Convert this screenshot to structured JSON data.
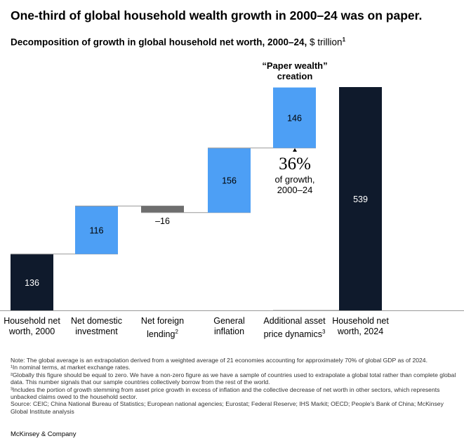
{
  "title": "One-third of global household wealth growth in 2000–24 was on paper.",
  "subtitle": "Decomposition of growth in global household net worth, 2000–24,",
  "subtitle_unit": " $ trillion",
  "subtitle_sup": "1",
  "annotation_top": "“Paper wealth” creation",
  "annotation_pct": "36%",
  "annotation_text": "of growth, 2000–24",
  "chart_data": {
    "type": "waterfall",
    "categories": [
      "Household net worth, 2000",
      "Net domestic investment",
      "Net foreign lending",
      "General inflation",
      "Additional asset price dynamics",
      "Household net worth, 2024"
    ],
    "category_sups": [
      "",
      "",
      "2",
      "",
      "3",
      ""
    ],
    "values": [
      136,
      116,
      -16,
      156,
      146,
      539
    ],
    "labels": [
      "136",
      "116",
      "–16",
      "156",
      "146",
      "539"
    ],
    "kinds": [
      "total",
      "delta",
      "delta",
      "delta",
      "delta",
      "total"
    ],
    "ylim": [
      0,
      539
    ],
    "colors": {
      "total": "#0f1a2c",
      "positive": "#4d9ff5",
      "negative": "#6e6e6e"
    }
  },
  "notes": [
    "Note: The global average is an extrapolation derived from a weighted average of 21 economies accounting for approximately 70% of global GDP as of 2024.",
    "¹In nominal terms, at market exchange rates.",
    "²Globally this figure should be equal to zero. We have a non-zero figure as we have a sample of countries used to extrapolate a global total rather than complete global data. This number signals that our sample countries collectively borrow from the rest of the world.",
    "³Includes the portion of growth stemming from asset price growth in excess of inflation and the collective decrease of net worth in other sectors, which represents unbacked claims owed to the household sector.",
    "Source: CEIC; China National Bureau of Statistics; European national agencies; Eurostat; Federal Reserve; IHS Markit; OECD; People's Bank of China; McKinsey Global Institute analysis"
  ],
  "brand": "McKinsey & Company"
}
